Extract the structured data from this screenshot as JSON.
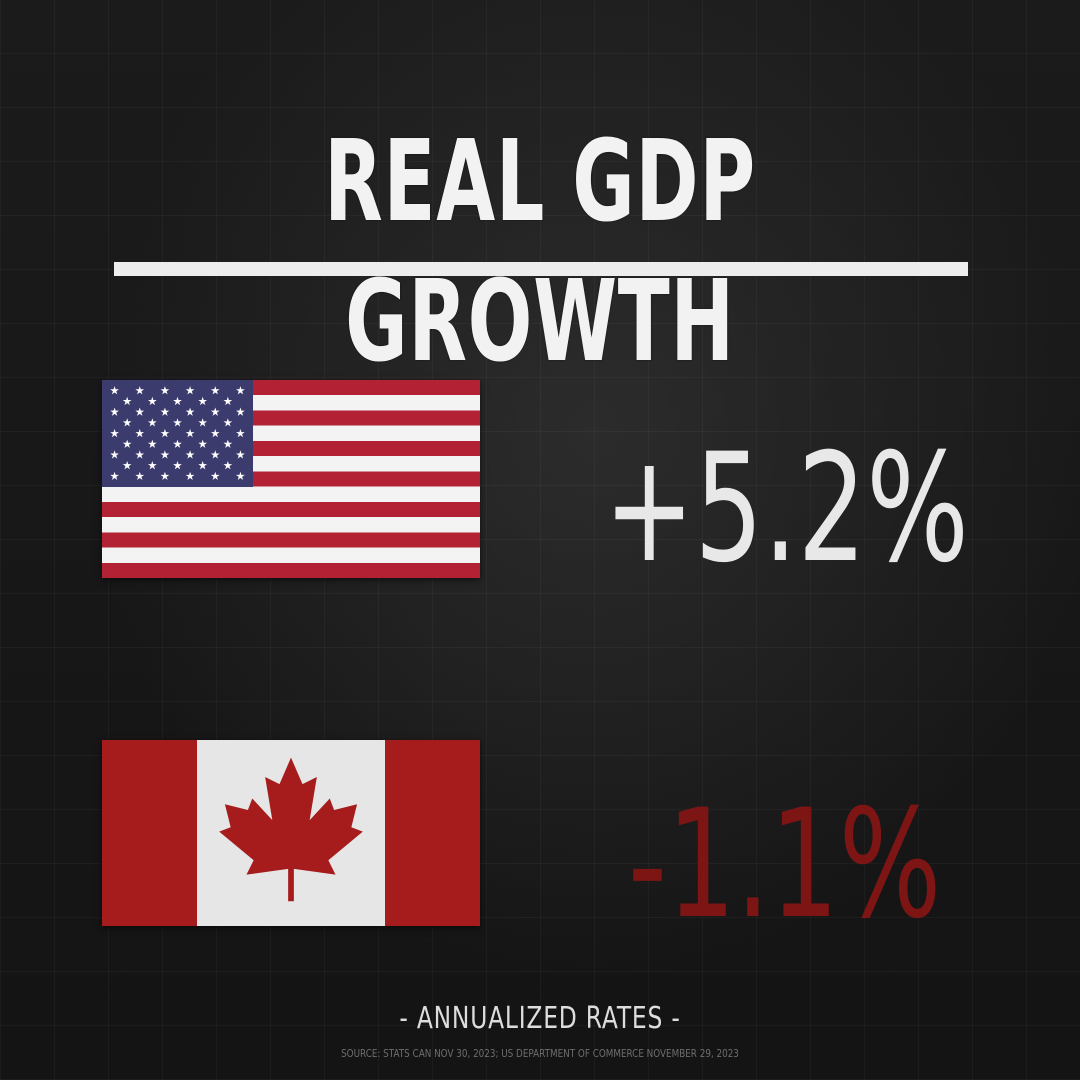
{
  "title": "REAL GDP GROWTH",
  "entries": [
    {
      "country_flag": "us-flag-icon",
      "value": "+5.2%",
      "color": "#e8e8e8"
    },
    {
      "country_flag": "canada-flag-icon",
      "value": "-1.1%",
      "color": "#7d1515"
    }
  ],
  "subtitle": "- ANNUALIZED RATES -",
  "source": "SOURCE: STATS CAN NOV 30, 2023; US DEPARTMENT OF COMMERCE NOVEMBER 29, 2023",
  "colors": {
    "background": "#151515",
    "us_red": "#b22234",
    "us_blue": "#3c3b6e",
    "canada_red": "#a61c1c"
  }
}
